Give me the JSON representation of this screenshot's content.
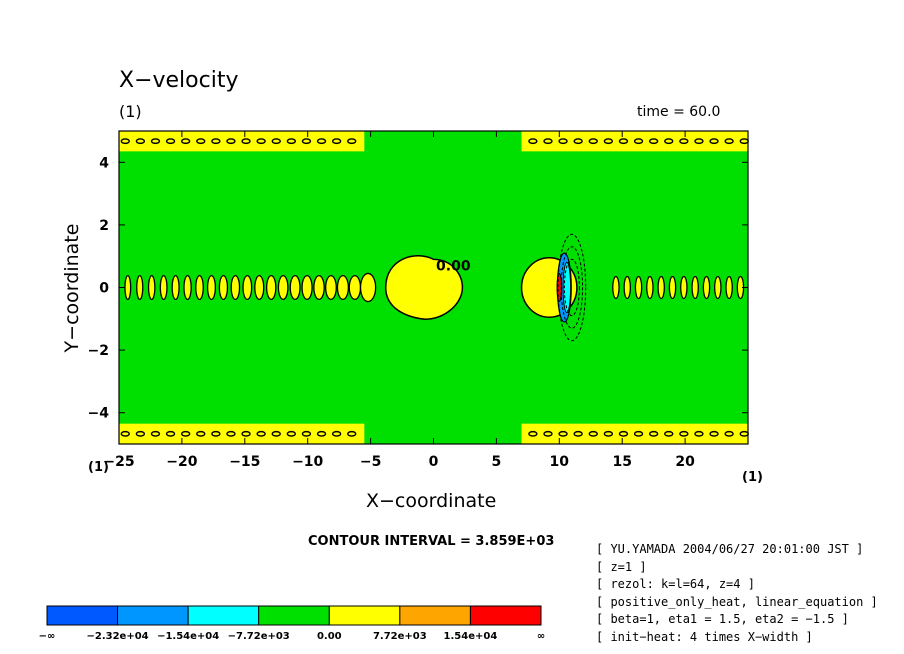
{
  "chart_data": {
    "type": "heatmap",
    "title": "X−velocity",
    "panel_label": "(1)",
    "panel_label_corner": "(1)",
    "time_label": "time = 60.0",
    "xlabel": "X−coordinate",
    "ylabel": "Y−coordinate",
    "xlim": [
      -25,
      25
    ],
    "ylim": [
      -5,
      5
    ],
    "x_ticks": [
      -25,
      -20,
      -15,
      -10,
      -5,
      0,
      5,
      10,
      15,
      20
    ],
    "x_tick_labels": [
      "−25",
      "−20",
      "−15",
      "−10",
      "−5",
      "0",
      "5",
      "10",
      "15",
      "20"
    ],
    "y_ticks": [
      4,
      2,
      0,
      -2,
      -4
    ],
    "y_tick_labels": [
      "4",
      "2",
      "0",
      "−2",
      "−4"
    ],
    "contour_label": "0.00",
    "contour_interval": "CONTOUR INTERVAL = 3.859E+03",
    "colorbar": {
      "levels": [
        "−∞",
        "−2.32e+04",
        "−1.54e+04",
        "−7.72e+03",
        "0.00",
        "7.72e+03",
        "1.54e+04",
        "∞"
      ],
      "colors": [
        "#0058ff",
        "#0096ff",
        "#00ffff",
        "#00e000",
        "#ffff00",
        "#ffa500",
        "#ff0000"
      ]
    },
    "colors": {
      "background_field": "#00e000",
      "positive": "#ffff00",
      "negative": "#00ffff",
      "strong_negative": "#0096ff",
      "strong_positive": "#ff0000"
    }
  },
  "info_lines": [
    "[ YU.YAMADA 2004/06/27 20:01:00 JST ]",
    "[ z=1 ]",
    "[ rezol: k=l=64, z=4 ]",
    "[ positive_only_heat, linear_equation ]",
    "[ beta=1, eta1 = 1.5, eta2 = −1.5 ]",
    "[ init−heat: 4 times X−width ]"
  ]
}
